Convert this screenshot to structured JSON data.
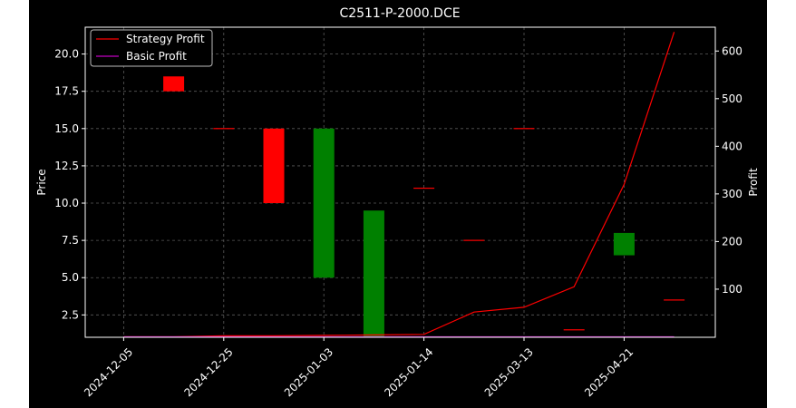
{
  "chart_data": {
    "type": "candlestick-with-line",
    "title": "C2511-P-2000.DCE",
    "ylabel_left": "Price",
    "ylabel_right": "Profit",
    "ylim_left": [
      1.0,
      21.8
    ],
    "ylim_right": [
      -1,
      650
    ],
    "grid": true,
    "legend_placement": "upper-left",
    "x_tick_labels": [
      "2024-12-05",
      "2024-12-25",
      "2025-01-03",
      "2025-01-14",
      "2025-03-13",
      "2025-04-21"
    ],
    "y_left_ticks": [
      "2.5",
      "5.0",
      "7.5",
      "10.0",
      "12.5",
      "15.0",
      "17.5",
      "20.0"
    ],
    "y_right_ticks": [
      "100",
      "200",
      "300",
      "400",
      "500",
      "600"
    ],
    "candles": [
      {
        "i": 0.5,
        "open": 18.5,
        "close": 17.5,
        "color": "#ff0000"
      },
      {
        "i": 1.0,
        "open": 15.0,
        "close": 15.0,
        "color": "#ff0000"
      },
      {
        "i": 1.5,
        "open": 15.0,
        "close": 10.0,
        "color": "#ff0000"
      },
      {
        "i": 2.0,
        "open": 5.0,
        "close": 15.0,
        "color": "#008000"
      },
      {
        "i": 2.5,
        "open": 1.0,
        "close": 9.5,
        "color": "#008000"
      },
      {
        "i": 3.0,
        "open": 11.0,
        "close": 11.0,
        "color": "#ff0000"
      },
      {
        "i": 3.5,
        "open": 7.5,
        "close": 7.5,
        "color": "#ff0000"
      },
      {
        "i": 4.0,
        "open": 15.0,
        "close": 15.0,
        "color": "#ff0000"
      },
      {
        "i": 4.5,
        "open": 1.5,
        "close": 1.5,
        "color": "#ff0000"
      },
      {
        "i": 5.0,
        "open": 6.5,
        "close": 8.0,
        "color": "#008000"
      },
      {
        "i": 5.5,
        "open": 3.5,
        "close": 3.5,
        "color": "#ff0000"
      }
    ],
    "series": [
      {
        "name": "Strategy Profit",
        "color": "#ff0000",
        "x": [
          0,
          0.5,
          1,
          1.5,
          2,
          2.5,
          3,
          3.5,
          4,
          4.5,
          5,
          5.5
        ],
        "y": [
          0,
          0,
          2,
          2,
          3,
          4,
          5,
          52,
          62,
          105,
          320,
          640
        ]
      },
      {
        "name": "Basic Profit",
        "color": "#bf00bf",
        "x": [
          0,
          5.5
        ],
        "y": [
          0,
          0
        ]
      }
    ]
  }
}
